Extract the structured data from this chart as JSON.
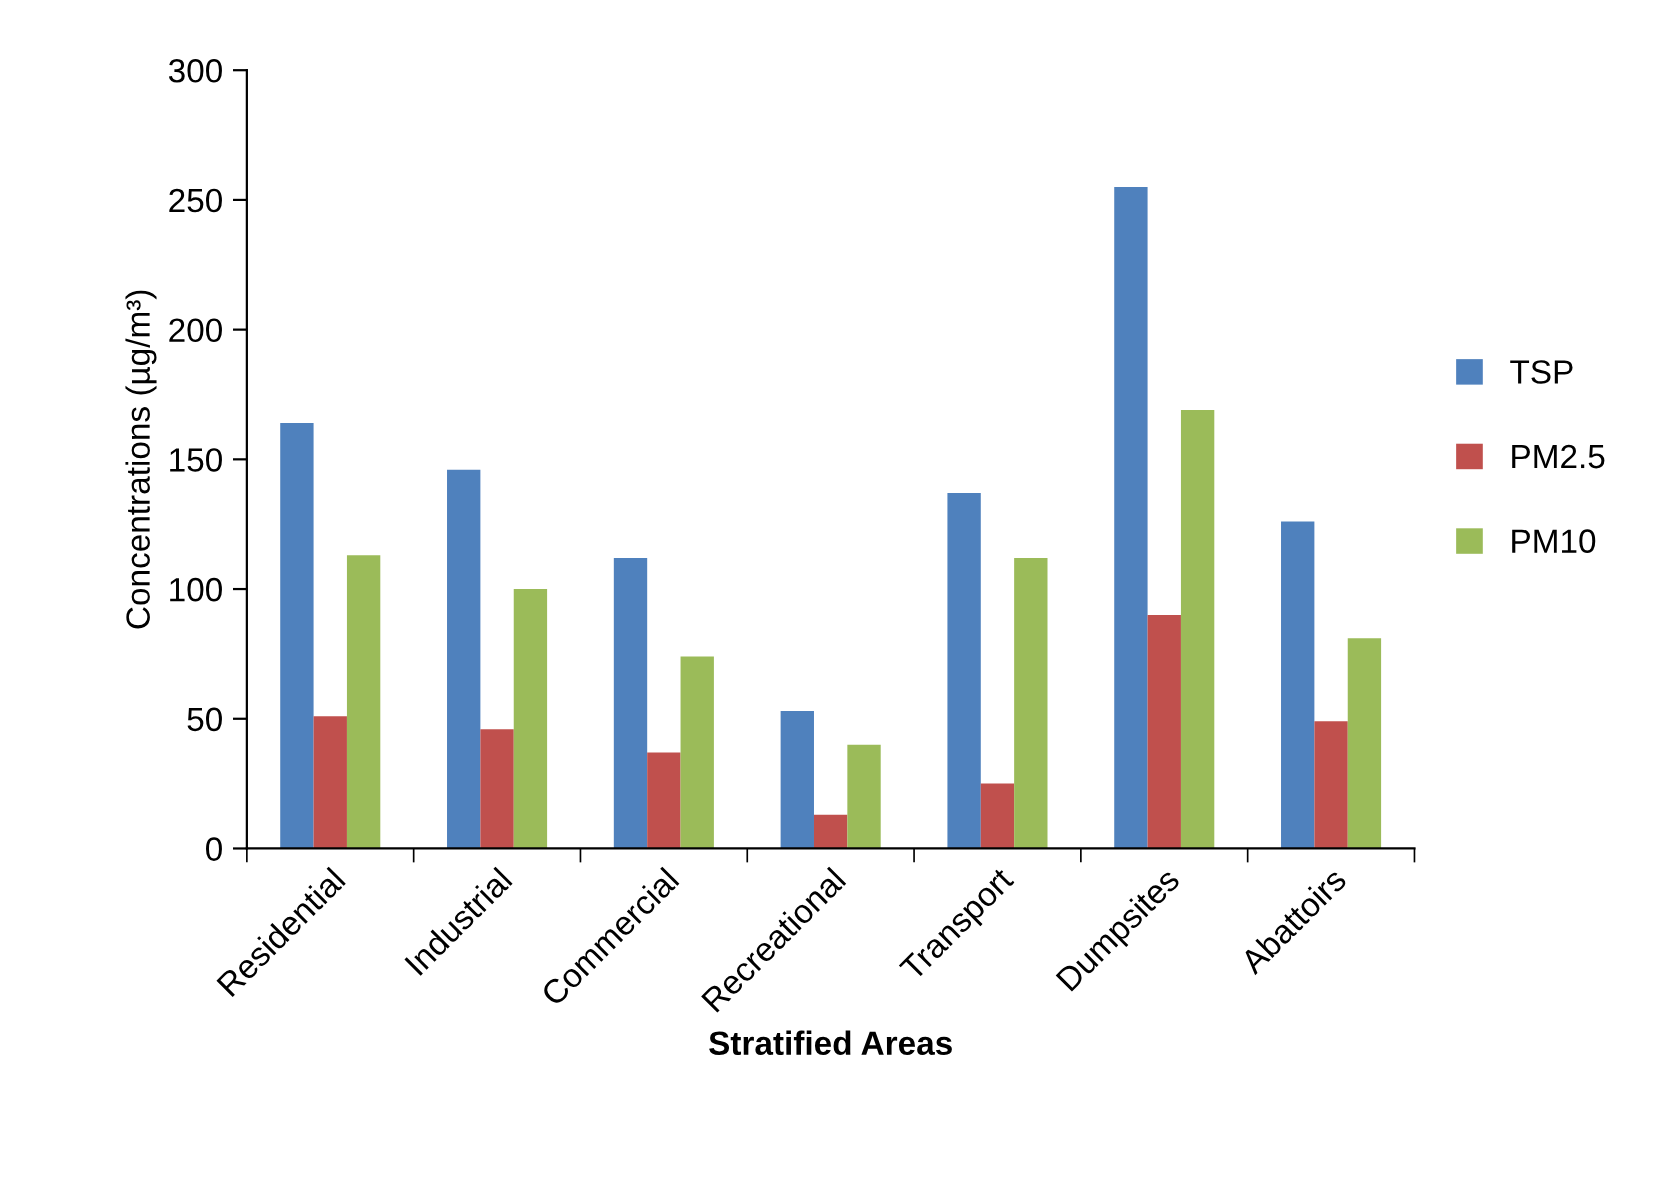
{
  "chart_data": {
    "type": "bar",
    "xlabel": "Stratified Areas",
    "ylabel": "Concentrations (µg/m³)",
    "categories": [
      "Residential",
      "Industrial",
      "Commercial",
      "Recreational",
      "Transport",
      "Dumpsites",
      "Abattoirs"
    ],
    "series": [
      {
        "name": "TSP",
        "color": "#4f81bd",
        "values": [
          164,
          146,
          112,
          53,
          137,
          255,
          126
        ]
      },
      {
        "name": "PM2.5",
        "color": "#c0504d",
        "values": [
          51,
          46,
          37,
          13,
          25,
          90,
          49
        ]
      },
      {
        "name": "PM10",
        "color": "#9bbb59",
        "values": [
          113,
          100,
          74,
          40,
          112,
          169,
          81
        ]
      }
    ],
    "ylim": [
      0,
      300
    ],
    "yticks": [
      0,
      50,
      100,
      150,
      200,
      250,
      300
    ],
    "grid": false,
    "legend": "right"
  }
}
